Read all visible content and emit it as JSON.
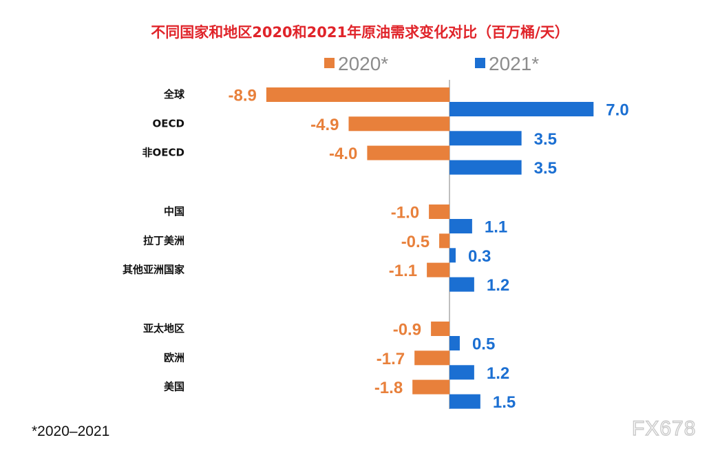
{
  "chart_data": {
    "type": "bar",
    "orientation": "horizontal",
    "title": "不同国家和地区2020和2021年原油需求变化对比（百万桶/天）",
    "categories": [
      "全球",
      "OECD",
      "非OECD",
      "中国",
      "拉丁美洲",
      "其他亚洲国家",
      "亚太地区",
      "欧洲",
      "美国"
    ],
    "series": [
      {
        "name": "2020*",
        "color": "#e8803b",
        "values": [
          -8.9,
          -4.9,
          -4.0,
          -1.0,
          -0.5,
          -1.1,
          -0.9,
          -1.7,
          -1.8
        ],
        "value_labels": [
          "-8.9",
          "-4.9",
          "-4.0",
          "-1.0",
          "-0.5",
          "-1.1",
          "-0.9",
          "-1.7",
          "-1.8"
        ]
      },
      {
        "name": "2021*",
        "color": "#1b6fd2",
        "values": [
          7.0,
          3.5,
          3.5,
          1.1,
          0.3,
          1.2,
          0.5,
          1.2,
          1.5
        ],
        "value_labels": [
          "7.0",
          "3.5",
          "3.5",
          "1.1",
          "0.3",
          "1.2",
          "0.5",
          "1.2",
          "1.5"
        ]
      }
    ],
    "groups": [
      [
        0,
        1,
        2
      ],
      [
        3,
        4,
        5
      ],
      [
        6,
        7,
        8
      ]
    ],
    "xlim": [
      -10,
      7.5
    ],
    "legend_position": "top",
    "grid": false,
    "title_color": "#e0242a",
    "axis_color": "#bfbfbf"
  },
  "footnote": "*2020–2021",
  "watermark": "FX678"
}
